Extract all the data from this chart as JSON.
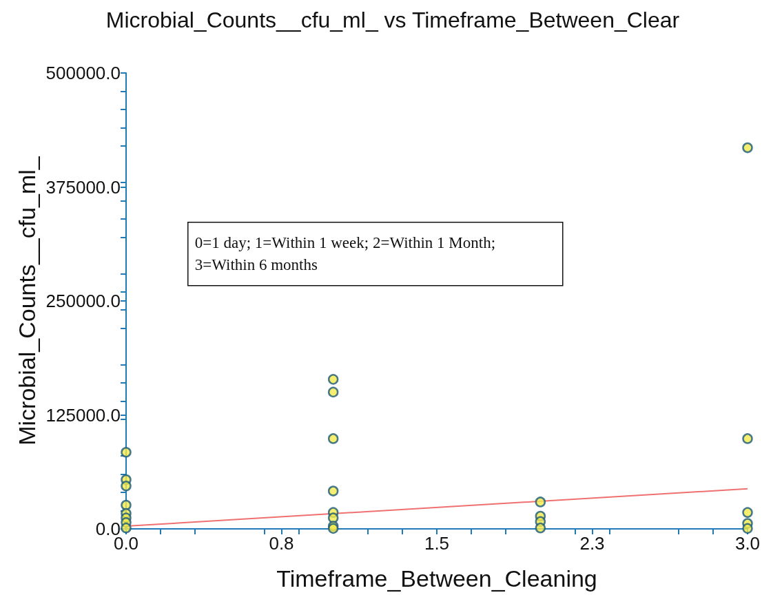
{
  "chart_data": {
    "type": "scatter",
    "title": "Microbial_Counts__cfu_ml_ vs Timeframe_Between_Clear",
    "xlabel": "Timeframe_Between_Cleaning",
    "ylabel": "Microbial_Counts__cfu_ml_",
    "annotations": [
      "0=1 day; 1=Within 1 week; 2=Within 1 Month; 3=Within 6 months"
    ],
    "xlim": [
      0,
      3
    ],
    "xticks": [
      {
        "value": 0,
        "label": "0.0"
      },
      {
        "value": 0.75,
        "label": "0.8"
      },
      {
        "value": 1.5,
        "label": "1.5"
      },
      {
        "value": 2.25,
        "label": "2.3"
      },
      {
        "value": 3,
        "label": "3.0"
      }
    ],
    "ylim": [
      0,
      500000
    ],
    "yticks": [
      {
        "value": 0,
        "label": "0.0"
      },
      {
        "value": 125000,
        "label": "125000.0"
      },
      {
        "value": 250000,
        "label": "250000.0"
      },
      {
        "value": 375000,
        "label": "375000.0"
      },
      {
        "value": 500000,
        "label": "500000.0"
      }
    ],
    "marker": "circle",
    "series": [
      {
        "color": "#f2ea4c",
        "x": [
          0,
          0,
          0,
          0,
          0,
          0,
          0,
          0,
          1,
          1,
          1,
          1,
          1,
          1,
          1,
          1,
          2,
          2,
          2,
          2,
          3,
          3,
          3,
          3,
          3
        ],
        "values": [
          84000,
          54000,
          47000,
          26000,
          17000,
          12000,
          7000,
          1000,
          164000,
          150000,
          99000,
          41500,
          18000,
          12000,
          3000,
          500,
          29500,
          14000,
          8000,
          1000,
          418000,
          99000,
          18000,
          6000,
          500
        ]
      },
      {
        "type": "line",
        "color": "#f07070",
        "marker": "none",
        "x": [
          0,
          3
        ],
        "values": [
          3000,
          44000
        ]
      }
    ]
  }
}
